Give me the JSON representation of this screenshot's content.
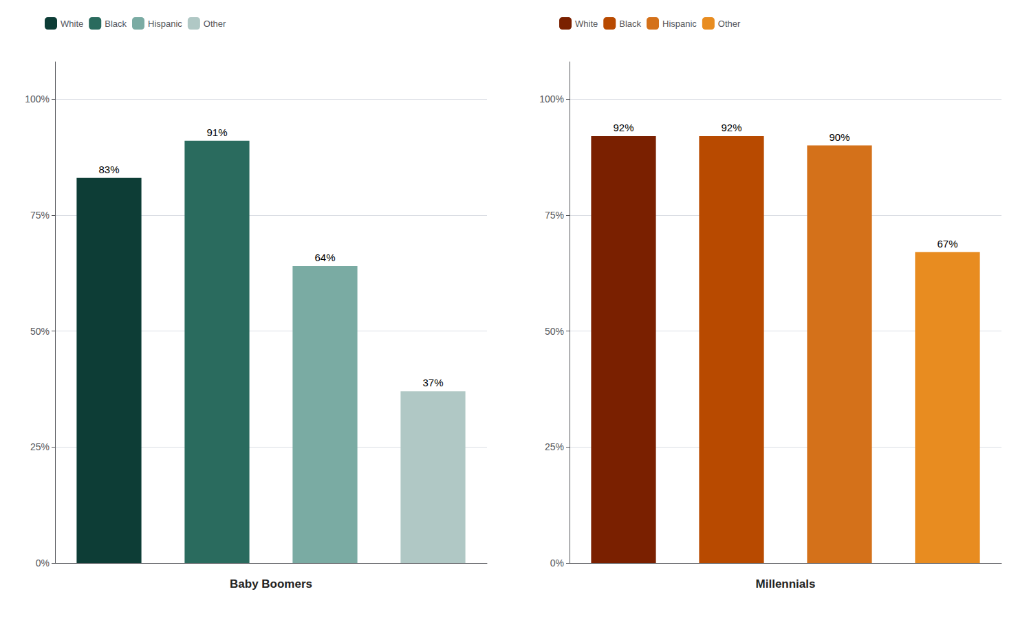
{
  "chart_data": [
    {
      "type": "bar",
      "xlabel": "Baby Boomers",
      "categories": [
        "White",
        "Black",
        "Hispanic",
        "Other"
      ],
      "values": [
        83,
        91,
        64,
        37
      ],
      "value_labels": [
        "83%",
        "91%",
        "64%",
        "37%"
      ],
      "colors": [
        "#0d3d36",
        "#2a6b5e",
        "#7aaba3",
        "#b0c8c5"
      ],
      "ylim": [
        0,
        108
      ],
      "yticks": [
        {
          "value": 0,
          "label": "0%"
        },
        {
          "value": 25,
          "label": "25%"
        },
        {
          "value": 50,
          "label": "50%"
        },
        {
          "value": 75,
          "label": "75%"
        },
        {
          "value": 100,
          "label": "100%"
        }
      ],
      "grid": true,
      "legend": "top",
      "data_labels": true,
      "tick_labels": "y"
    },
    {
      "type": "bar",
      "xlabel": "Millennials",
      "categories": [
        "White",
        "Black",
        "Hispanic",
        "Other"
      ],
      "values": [
        92,
        92,
        90,
        67
      ],
      "value_labels": [
        "92%",
        "92%",
        "90%",
        "67%"
      ],
      "colors": [
        "#7a2000",
        "#b84a00",
        "#d4711a",
        "#e88c20"
      ],
      "ylim": [
        0,
        108
      ],
      "yticks": [
        {
          "value": 0,
          "label": "0%"
        },
        {
          "value": 25,
          "label": "25%"
        },
        {
          "value": 50,
          "label": "50%"
        },
        {
          "value": 75,
          "label": "75%"
        },
        {
          "value": 100,
          "label": "100%"
        }
      ],
      "grid": true,
      "legend": "top",
      "data_labels": true,
      "tick_labels": "y"
    }
  ]
}
